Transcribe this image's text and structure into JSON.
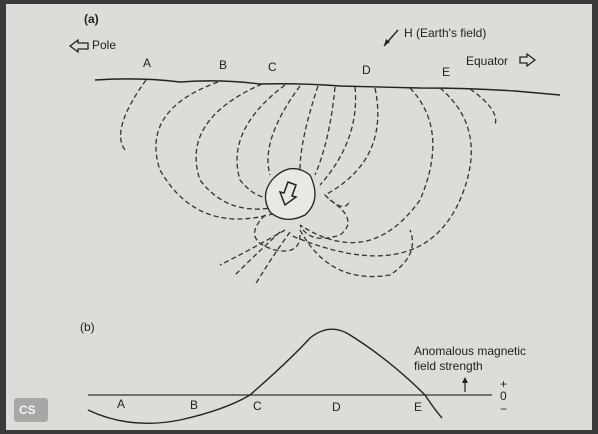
{
  "panel_a": {
    "label": "(a)",
    "pole": "Pole",
    "field": "H (Earth's field)",
    "equator": "Equator",
    "points": [
      "A",
      "B",
      "C",
      "D",
      "E"
    ]
  },
  "panel_b": {
    "label": "(b)",
    "annotation": [
      "Anomalous magnetic",
      "field strength"
    ],
    "axis": {
      "plus": "+",
      "zero": "0",
      "minus": "−"
    },
    "points": [
      "A",
      "B",
      "C",
      "D",
      "E"
    ]
  },
  "watermark": "CS"
}
